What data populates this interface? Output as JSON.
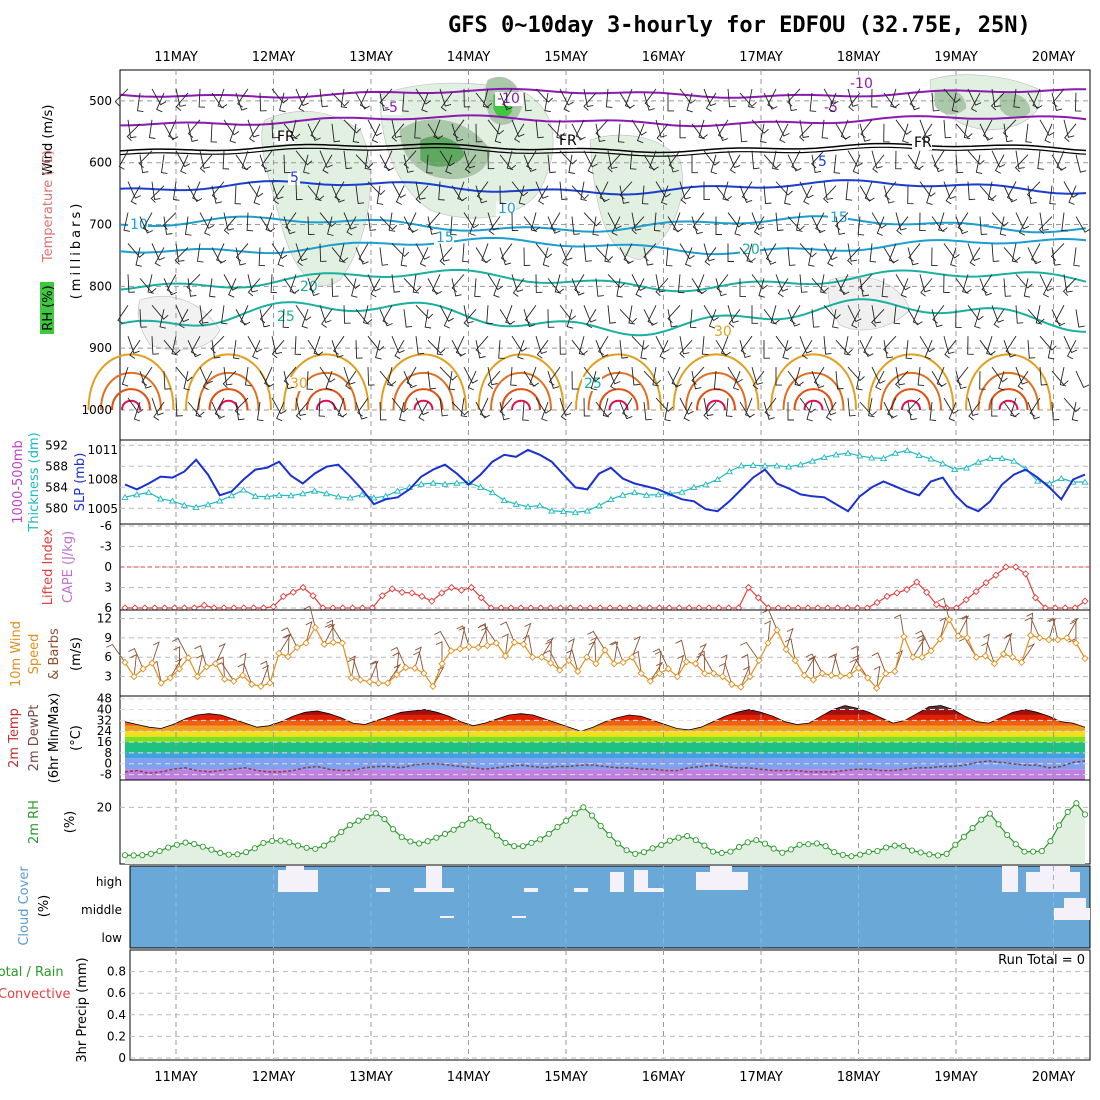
{
  "title": "GFS 0~10day 3-hourly for EDFOU (32.75E, 25N)",
  "dates": [
    "11MAY",
    "12MAY",
    "13MAY",
    "14MAY",
    "15MAY",
    "16MAY",
    "17MAY",
    "18MAY",
    "19MAY",
    "20MAY"
  ],
  "colors": {
    "rh_light": "#e2f0e2",
    "rh_mid": "#a9c9a9",
    "rh_dark": "#5fa85f",
    "rh_bright": "#3dc83d",
    "temp_purple": "#8b1ab0",
    "temp_blue": "#1a3fd0",
    "temp_cyan": "#1a9fd0",
    "temp_teal": "#1ab0a0",
    "temp_orange": "#e0a020",
    "temp_red": "#e05010",
    "slp": "#1a30d0",
    "thickness": "#20b8c0",
    "li": "#e04040",
    "wind10": "#e09020",
    "barb10": "#8b5030",
    "rh2m": "#2a9a2a",
    "cloud": "#6aa8d8"
  },
  "panels": {
    "upper": {
      "ylabels": [
        "Wind (m/s)",
        "Temperature (°C)",
        "RH (%)",
        "(millibars)"
      ],
      "yticks": [
        "500",
        "600",
        "700",
        "800",
        "900",
        "1000"
      ],
      "contours": [
        {
          "label": "-10",
          "value": -10,
          "color": "#8b1ab0"
        },
        {
          "label": "-5",
          "value": -5,
          "color": "#8b1ab0"
        },
        {
          "label": "FR",
          "value": 0,
          "color": "#000000"
        },
        {
          "label": "5",
          "value": 5,
          "color": "#1a3fd0"
        },
        {
          "label": "10",
          "value": 10,
          "color": "#1a9fd0"
        },
        {
          "label": "15",
          "value": 15,
          "color": "#1a9fd0"
        },
        {
          "label": "20",
          "value": 20,
          "color": "#1ab0a0"
        },
        {
          "label": "25",
          "value": 25,
          "color": "#1ab0a0"
        },
        {
          "label": "30",
          "value": 30,
          "color": "#e0a020"
        }
      ]
    },
    "slp": {
      "ylabels": [
        "1000-500mb",
        "Thickness (dm)",
        "SLP (mb)"
      ],
      "thickness_ticks": [
        "592",
        "588",
        "584",
        "580"
      ],
      "slp_ticks": [
        "1011",
        "1008",
        "1005"
      ],
      "slp_series": [
        1007.5,
        1007.0,
        1007.6,
        1008.3,
        1008.2,
        1008.8,
        1010.0,
        1008.5,
        1006.4,
        1006.8,
        1008.0,
        1009.0,
        1009.2,
        1009.8,
        1008.4,
        1007.6,
        1008.6,
        1009.3,
        1009.5,
        1008.3,
        1007.0,
        1005.5,
        1006.0,
        1006.2,
        1007.0,
        1008.3,
        1009.0,
        1009.5,
        1008.6,
        1007.5,
        1008.5,
        1009.8,
        1010.5,
        1010.3,
        1011.0,
        1010.5,
        1009.8,
        1008.5,
        1007.2,
        1007.0,
        1008.6,
        1009.2,
        1008.1,
        1007.6,
        1007.3,
        1007.0,
        1006.5,
        1006.0,
        1005.8,
        1005.0,
        1004.8,
        1005.8,
        1007.0,
        1008.2,
        1009.0,
        1007.6,
        1007.1,
        1006.5,
        1006.3,
        1006.2,
        1005.5,
        1004.8,
        1006.3,
        1007.2,
        1007.8,
        1007.3,
        1006.8,
        1006.4,
        1007.8,
        1008.2,
        1006.5,
        1005.3,
        1004.8,
        1005.8,
        1007.5,
        1008.5,
        1009.0,
        1008.2,
        1007.2,
        1006.0,
        1008.0,
        1008.5
      ],
      "thickness_series": [
        582.1,
        582.6,
        583.0,
        581.8,
        581.4,
        580.6,
        580.2,
        580.7,
        581.4,
        582.4,
        583.5,
        582.3,
        582.2,
        582.5,
        582.4,
        582.8,
        583.3,
        582.8,
        582.2,
        582.0,
        582.6,
        582.0,
        582.3,
        583.3,
        584.0,
        584.6,
        584.8,
        584.6,
        584.8,
        584.9,
        584.0,
        583.0,
        581.5,
        580.8,
        580.3,
        580.5,
        579.5,
        579.4,
        579.2,
        579.5,
        580.5,
        581.7,
        582.5,
        583.0,
        582.5,
        582.6,
        582.8,
        583.1,
        584.0,
        584.5,
        585.5,
        587.0,
        588.1,
        588.2,
        588.1,
        588.1,
        587.9,
        588.3,
        589.0,
        589.7,
        590.2,
        590.5,
        590.0,
        589.6,
        589.5,
        590.5,
        591.0,
        590.1,
        589.4,
        588.5,
        587.4,
        587.7,
        588.8,
        589.5,
        589.5,
        589.0,
        587.5,
        585.2,
        584.7,
        585.7,
        585.0,
        585.0
      ]
    },
    "li": {
      "ylabels": [
        "Lifted Index",
        "CAPE (J/kg)"
      ],
      "yticks": [
        "-6",
        "-3",
        "0",
        "3",
        "6"
      ],
      "series": [
        6.0,
        6.0,
        6.0,
        6.0,
        6.0,
        6.0,
        6.0,
        6.0,
        5.6,
        6.0,
        6.0,
        6.0,
        6.0,
        6.0,
        6.0,
        5.8,
        4.3,
        3.7,
        3.0,
        4.2,
        6.0,
        6.0,
        6.0,
        6.0,
        6.0,
        6.0,
        4.2,
        3.2,
        3.7,
        3.8,
        4.3,
        5.0,
        3.8,
        3.0,
        3.4,
        3.0,
        4.5,
        6.0,
        6.0,
        6.0,
        6.0,
        6.0,
        6.0,
        6.0,
        6.0,
        6.0,
        6.0,
        6.0,
        6.0,
        6.0,
        6.0,
        6.0,
        6.0,
        6.0,
        6.0,
        6.0,
        6.0,
        6.0,
        6.0,
        6.0,
        6.0,
        6.0,
        6.0,
        3.0,
        4.5,
        6.0,
        6.0,
        6.0,
        6.0,
        6.0,
        6.0,
        6.0,
        6.0,
        6.0,
        6.0,
        6.0,
        5.2,
        4.3,
        3.8,
        3.3,
        2.2,
        3.7,
        5.5,
        6.0,
        6.0,
        4.8,
        3.6,
        2.3,
        1.2,
        0.0,
        0.0,
        1.0,
        4.5,
        6.0,
        6.0,
        6.0,
        6.0,
        5.0
      ]
    },
    "wind10": {
      "ylabels": [
        "10m Wind",
        "Speed",
        "& Barbs"
      ],
      "unit": "(m/s)",
      "yticks": [
        "12",
        "9",
        "6",
        "3"
      ],
      "series": [
        5.2,
        3.0,
        4.2,
        5.1,
        2.0,
        2.8,
        4.2,
        5.9,
        3.0,
        4.5,
        5.0,
        2.6,
        2.3,
        3.2,
        1.8,
        1.5,
        2.0,
        6.6,
        6.1,
        7.5,
        8.2,
        10.6,
        8.0,
        8.3,
        8.2,
        2.8,
        2.5,
        2.2,
        2.0,
        2.0,
        3.3,
        4.4,
        4.3,
        3.5,
        1.5,
        5.0,
        7.0,
        7.3,
        7.6,
        7.5,
        7.8,
        8.2,
        6.2,
        8.3,
        8.0,
        6.0,
        6.0,
        5.1,
        4.0,
        5.5,
        3.8,
        6.0,
        5.0,
        7.1,
        5.0,
        5.2,
        6.0,
        3.5,
        2.3,
        3.5,
        4.2,
        3.0,
        5.3,
        5.0,
        3.5,
        3.5,
        3.0,
        1.8,
        1.4,
        3.0,
        5.5,
        8.2,
        10.2,
        7.2,
        5.5,
        3.2,
        2.5,
        3.5,
        3.2,
        3.1,
        3.2,
        4.3,
        2.8,
        1.2,
        3.5,
        3.8,
        9.2,
        6.0,
        6.0,
        7.0,
        8.8,
        11.8,
        9.3,
        9.0,
        6.0,
        6.2,
        5.0,
        6.5,
        6.0,
        5.2,
        9.4,
        9.0,
        8.7,
        8.7,
        9.0,
        8.2,
        5.8
      ]
    },
    "temp2m": {
      "ylabels": [
        "2m Temp",
        "2m DewPt",
        "(6hr Min/Max)"
      ],
      "unit": "(°C)",
      "yticks": [
        "48",
        "40",
        "32",
        "24",
        "16",
        "8",
        "0",
        "-8"
      ],
      "max_series": [
        31,
        29,
        27,
        26,
        29,
        33,
        36,
        37,
        36,
        33,
        30,
        27,
        28,
        31,
        35,
        38,
        39,
        37,
        34,
        30,
        29,
        32,
        35,
        38,
        39,
        40,
        38,
        35,
        31,
        28,
        30,
        33,
        36,
        37,
        36,
        33,
        30,
        27,
        24,
        27,
        31,
        34,
        36,
        35,
        32,
        29,
        26,
        25,
        27,
        31,
        35,
        38,
        40,
        38,
        35,
        31,
        29,
        30,
        35,
        40,
        43,
        41,
        38,
        34,
        30,
        32,
        37,
        42,
        43,
        40,
        35,
        31,
        30,
        34,
        38,
        40,
        38,
        35,
        31,
        30,
        27
      ],
      "dew_series": [
        -6,
        -5,
        -7,
        -6,
        -4,
        -3,
        -5,
        -6,
        -5,
        -4,
        -3,
        -5,
        -6,
        -6,
        -5,
        -3,
        -2,
        -4,
        -5,
        -5,
        -3,
        -2,
        -2,
        -3,
        -1,
        0,
        0,
        -1,
        -2,
        -3,
        -4,
        -3,
        -2,
        -1,
        -2,
        -3,
        -2,
        -2,
        -1,
        -1,
        -2,
        -3,
        -3,
        -4,
        -4,
        -5,
        -5,
        -3,
        -2,
        -1,
        -2,
        -3,
        -3,
        -4,
        -5,
        -5,
        -5,
        -6,
        -6,
        -6,
        -5,
        -4,
        -4,
        -5,
        -5,
        -4,
        -3,
        -3,
        -2,
        -2,
        -1,
        1,
        2,
        1,
        0,
        -1,
        -1,
        -3,
        -2,
        1,
        2
      ]
    },
    "rh2m": {
      "ylabels": [
        "2m RH"
      ],
      "unit": "(%)",
      "yticks": [
        "20"
      ],
      "series": [
        2.5,
        2.4,
        2.5,
        3.0,
        4.0,
        5.3,
        6.3,
        7.1,
        6.6,
        5.6,
        4.5,
        3.3,
        2.7,
        2.8,
        3.6,
        5.0,
        7.0,
        7.7,
        7.8,
        7.2,
        6.0,
        5.2,
        4.8,
        6.0,
        8.3,
        11.0,
        13.5,
        15.1,
        16.5,
        17.8,
        15.7,
        12.0,
        9.1,
        7.5,
        6.8,
        7.6,
        8.9,
        10.3,
        11.8,
        13.6,
        15.9,
        15.2,
        13.0,
        9.7,
        7.0,
        5.8,
        5.8,
        7.0,
        8.3,
        10.3,
        12.8,
        15.1,
        17.8,
        20.0,
        17.0,
        13.2,
        9.9,
        6.8,
        4.3,
        3.0,
        3.6,
        5.0,
        6.2,
        7.8,
        8.9,
        9.5,
        8.0,
        6.0,
        3.8,
        3.3,
        3.8,
        5.5,
        7.2,
        8.0,
        6.7,
        4.9,
        3.4,
        4.6,
        6.3,
        6.5,
        6.8,
        5.8,
        3.6,
        2.6,
        2.1,
        2.7,
        3.7,
        4.0,
        5.3,
        6.0,
        5.8,
        4.2,
        3.5,
        2.8,
        2.4,
        3.0,
        6.3,
        9.2,
        12.4,
        15.5,
        17.7,
        13.8,
        9.9,
        6.5,
        3.8,
        3.8,
        4.0,
        7.6,
        13.4,
        18.3,
        21.5,
        17.4
      ]
    },
    "cloud": {
      "ylabels": [
        "Cloud Cover",
        "(%)"
      ],
      "levels": [
        "high",
        "middle",
        "low"
      ]
    },
    "precip": {
      "ylabels": [
        "Total / Rain",
        "Convective",
        "3hr Precip (mm)"
      ],
      "yticks": [
        "0.8",
        "0.6",
        "0.4",
        "0.2",
        "0"
      ],
      "run_total": "Run Total = 0",
      "series": [
        0,
        0,
        0,
        0,
        0,
        0,
        0,
        0,
        0,
        0,
        0,
        0,
        0,
        0,
        0,
        0,
        0,
        0,
        0,
        0,
        0,
        0,
        0,
        0,
        0,
        0,
        0,
        0,
        0,
        0,
        0,
        0,
        0,
        0,
        0,
        0,
        0,
        0,
        0,
        0,
        0,
        0,
        0,
        0,
        0,
        0,
        0,
        0,
        0,
        0,
        0,
        0,
        0,
        0,
        0,
        0,
        0,
        0,
        0,
        0,
        0,
        0,
        0,
        0,
        0,
        0,
        0,
        0,
        0,
        0,
        0,
        0,
        0,
        0,
        0,
        0,
        0,
        0,
        0,
        0,
        0
      ]
    }
  },
  "chart_data": [
    {
      "type": "line",
      "title": "GFS 0~10day 3-hourly for EDFOU (32.75E, 25N)",
      "ylabel": "(millibars)",
      "ylim": [
        1000,
        450
      ],
      "x": [
        "11MAY",
        "12MAY",
        "13MAY",
        "14MAY",
        "15MAY",
        "16MAY",
        "17MAY",
        "18MAY",
        "19MAY",
        "20MAY"
      ]
    },
    {
      "type": "line",
      "ylabel": "SLP (mb)",
      "ylim": [
        1003.5,
        1012
      ]
    },
    {
      "type": "line",
      "ylabel": "Lifted Index",
      "ylim": [
        -6,
        6
      ]
    },
    {
      "type": "line",
      "ylabel": "(m/s)",
      "ylim": [
        0,
        12
      ]
    },
    {
      "type": "area",
      "ylabel": "(°C)",
      "ylim": [
        -8,
        48
      ]
    },
    {
      "type": "area",
      "ylabel": "(%)",
      "ylim": [
        0,
        30
      ]
    },
    {
      "type": "area",
      "ylabel": "(%)"
    },
    {
      "type": "bar",
      "ylabel": "3hr Precip (mm)",
      "ylim": [
        0,
        1.0
      ]
    }
  ]
}
